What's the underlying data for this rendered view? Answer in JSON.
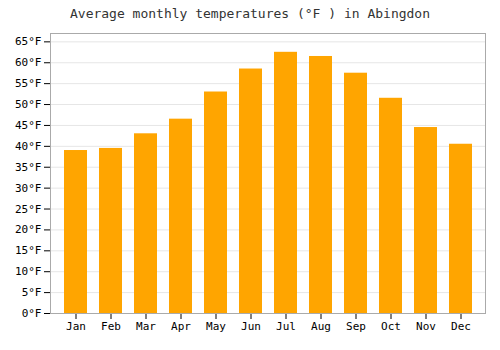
{
  "chart_data": {
    "type": "bar",
    "title": "Average monthly temperatures (°F ) in Abingdon",
    "categories": [
      "Jan",
      "Feb",
      "Mar",
      "Apr",
      "May",
      "Jun",
      "Jul",
      "Aug",
      "Sep",
      "Oct",
      "Nov",
      "Dec"
    ],
    "values": [
      39,
      39.5,
      43,
      46.5,
      53,
      58.5,
      62.5,
      61.5,
      57.5,
      51.5,
      44.5,
      40.5
    ],
    "color": "#FFA500",
    "ylim": [
      0,
      67
    ],
    "yticks": [
      {
        "value": 0,
        "label": "0°F"
      },
      {
        "value": 5,
        "label": "5°F"
      },
      {
        "value": 10,
        "label": "10°F"
      },
      {
        "value": 15,
        "label": "15°F"
      },
      {
        "value": 20,
        "label": "20°F"
      },
      {
        "value": 25,
        "label": "25°F"
      },
      {
        "value": 30,
        "label": "30°F"
      },
      {
        "value": 35,
        "label": "35°F"
      },
      {
        "value": 40,
        "label": "40°F"
      },
      {
        "value": 45,
        "label": "45°F"
      },
      {
        "value": 50,
        "label": "50°F"
      },
      {
        "value": 55,
        "label": "55°F"
      },
      {
        "value": 60,
        "label": "60°F"
      },
      {
        "value": 65,
        "label": "65°F"
      }
    ],
    "grid": true
  }
}
